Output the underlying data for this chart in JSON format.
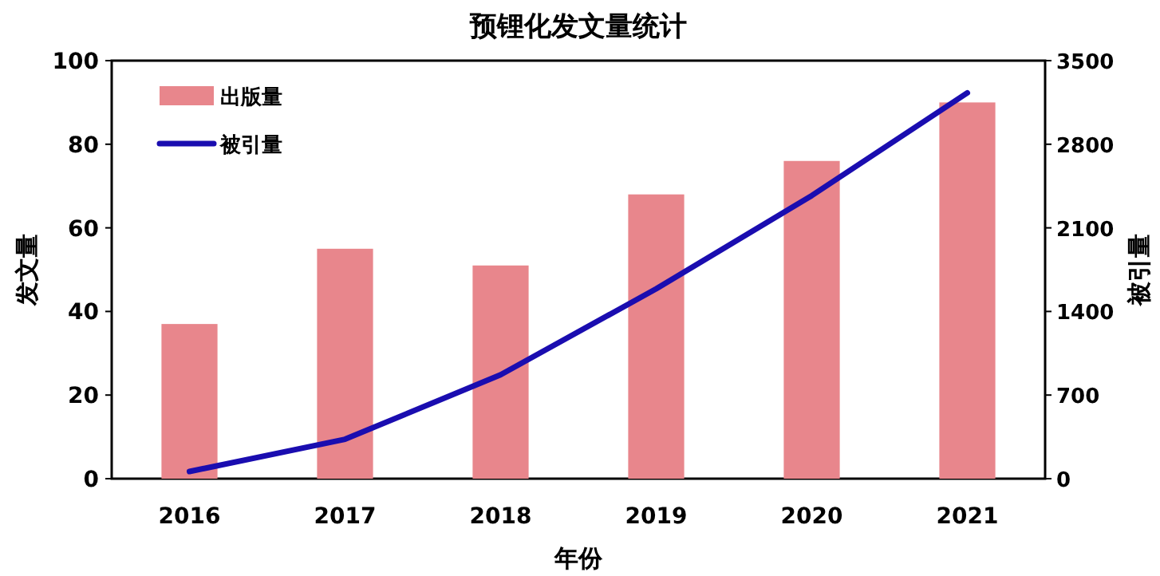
{
  "chart_data": {
    "type": "bar",
    "title": "预锂化发文量统计",
    "xlabel": "年份",
    "ylabel": "发文量",
    "y2label": "被引量",
    "categories": [
      "2016",
      "2017",
      "2018",
      "2019",
      "2020",
      "2021"
    ],
    "series": [
      {
        "name": "出版量",
        "color": "#e8868c",
        "values": [
          37,
          55,
          51,
          68,
          76,
          90
        ]
      },
      {
        "name": "被引量",
        "type": "line",
        "axis": "y2",
        "color": "#1a0db0",
        "values": [
          60,
          330,
          870,
          1590,
          2370,
          3230
        ]
      }
    ],
    "ylim": [
      0,
      100
    ],
    "yticks": [
      0,
      20,
      40,
      60,
      80,
      100
    ],
    "y2lim": [
      0,
      3500
    ],
    "y2ticks": [
      0,
      700,
      1400,
      2100,
      2800,
      3500
    ],
    "legend": "top left"
  }
}
